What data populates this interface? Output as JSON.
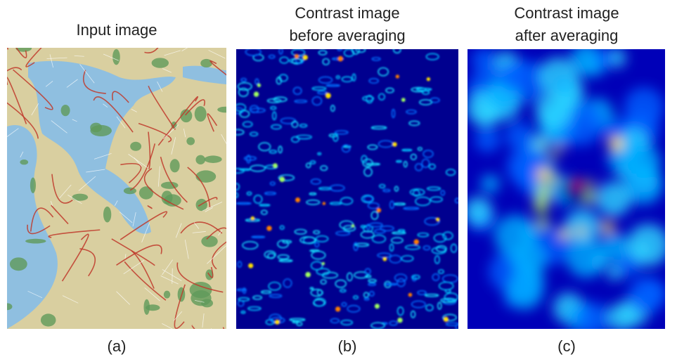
{
  "panels": [
    {
      "title_lines": [
        "Input image"
      ],
      "caption": "(a)"
    },
    {
      "title_lines": [
        "Contrast image",
        "before averaging"
      ],
      "caption": "(b)"
    },
    {
      "title_lines": [
        "Contrast image",
        "after averaging"
      ],
      "caption": "(c)"
    }
  ]
}
